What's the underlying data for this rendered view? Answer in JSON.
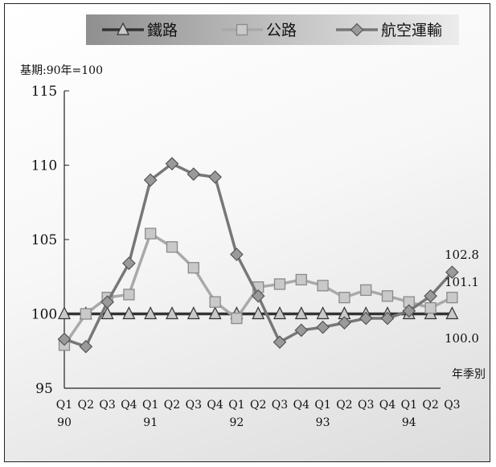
{
  "chart_data": {
    "type": "line",
    "ylabel": "基期:90年=100",
    "xlabel": "年季別",
    "ylim": [
      95,
      115
    ],
    "yticks": [
      "95",
      "100",
      "105",
      "110",
      "115"
    ],
    "quarters": [
      "Q1",
      "Q2",
      "Q3",
      "Q4",
      "Q1",
      "Q2",
      "Q3",
      "Q4",
      "Q1",
      "Q2",
      "Q3",
      "Q4",
      "Q1",
      "Q2",
      "Q3",
      "Q4",
      "Q1",
      "Q2",
      "Q3"
    ],
    "years": [
      {
        "label": "90",
        "index": 0
      },
      {
        "label": "91",
        "index": 4
      },
      {
        "label": "92",
        "index": 8
      },
      {
        "label": "93",
        "index": 12
      },
      {
        "label": "94",
        "index": 16
      }
    ],
    "legend_position": "top",
    "series": [
      {
        "name": "鐵路",
        "color": "#333333",
        "marker": "triangle",
        "values": [
          100,
          100,
          100,
          100,
          100,
          100,
          100,
          100,
          100,
          100,
          100,
          100,
          100,
          100,
          100,
          100,
          100,
          100,
          100.0
        ],
        "end_label": "100.0"
      },
      {
        "name": "公路",
        "color": "#a9a9a9",
        "marker": "square",
        "values": [
          97.9,
          100.0,
          101.1,
          101.3,
          105.4,
          104.5,
          103.1,
          100.8,
          99.7,
          101.8,
          102.0,
          102.3,
          101.9,
          101.1,
          101.6,
          101.2,
          100.8,
          100.4,
          101.1
        ],
        "end_label": "101.1"
      },
      {
        "name": "航空運輸",
        "color": "#777777",
        "marker": "diamond",
        "values": [
          98.3,
          97.8,
          100.8,
          103.4,
          109.0,
          110.1,
          109.4,
          109.2,
          104.0,
          101.2,
          98.1,
          98.9,
          99.1,
          99.4,
          99.7,
          99.7,
          100.2,
          101.2,
          102.8
        ],
        "end_label": "102.8"
      }
    ]
  }
}
